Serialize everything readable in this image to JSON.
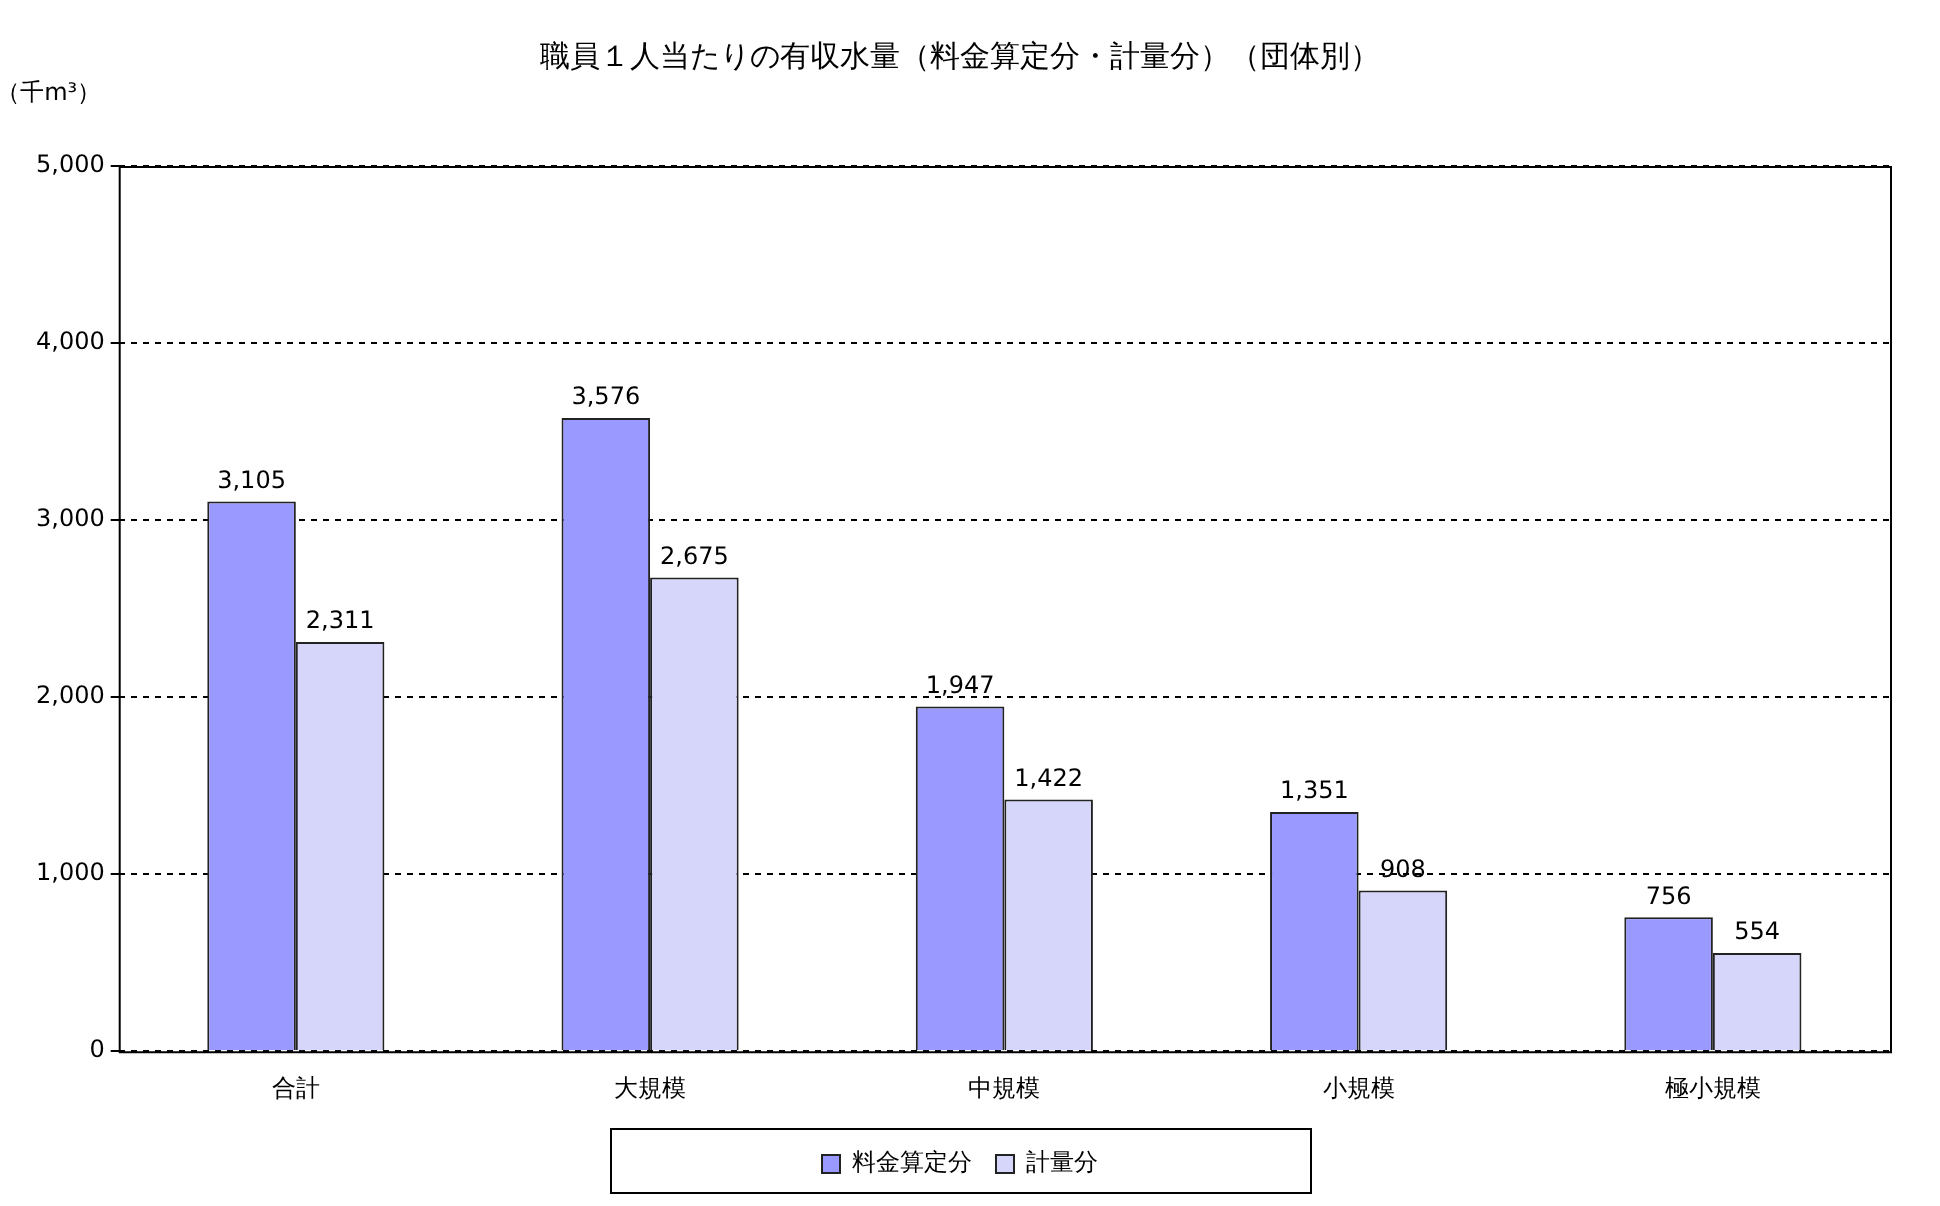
{
  "chart_data": {
    "type": "bar",
    "title": "職員１人当たりの有収水量（料金算定分・計量分）（団体別）",
    "ylabel": "（千m³）",
    "categories": [
      "合計",
      "大規模",
      "中規模",
      "小規模",
      "極小規模"
    ],
    "series": [
      {
        "name": "料金算定分",
        "color": "#9999ff",
        "values": [
          3105,
          3576,
          1947,
          1351,
          756
        ],
        "value_labels": [
          "3,105",
          "3,576",
          "1,947",
          "1,351",
          "756"
        ]
      },
      {
        "name": "計量分",
        "color": "#d6d6fb",
        "values": [
          2311,
          2675,
          1422,
          908,
          554
        ],
        "value_labels": [
          "2,311",
          "2,675",
          "1,422",
          "908",
          "554"
        ]
      }
    ],
    "ylim": [
      0,
      5000
    ],
    "yticks": [
      {
        "value": 0,
        "label": "0"
      },
      {
        "value": 1000,
        "label": "1,000"
      },
      {
        "value": 2000,
        "label": "2,000"
      },
      {
        "value": 3000,
        "label": "3,000"
      },
      {
        "value": 4000,
        "label": "4,000"
      },
      {
        "value": 5000,
        "label": "5,000"
      }
    ],
    "grid": "y",
    "legend": "bottom"
  }
}
